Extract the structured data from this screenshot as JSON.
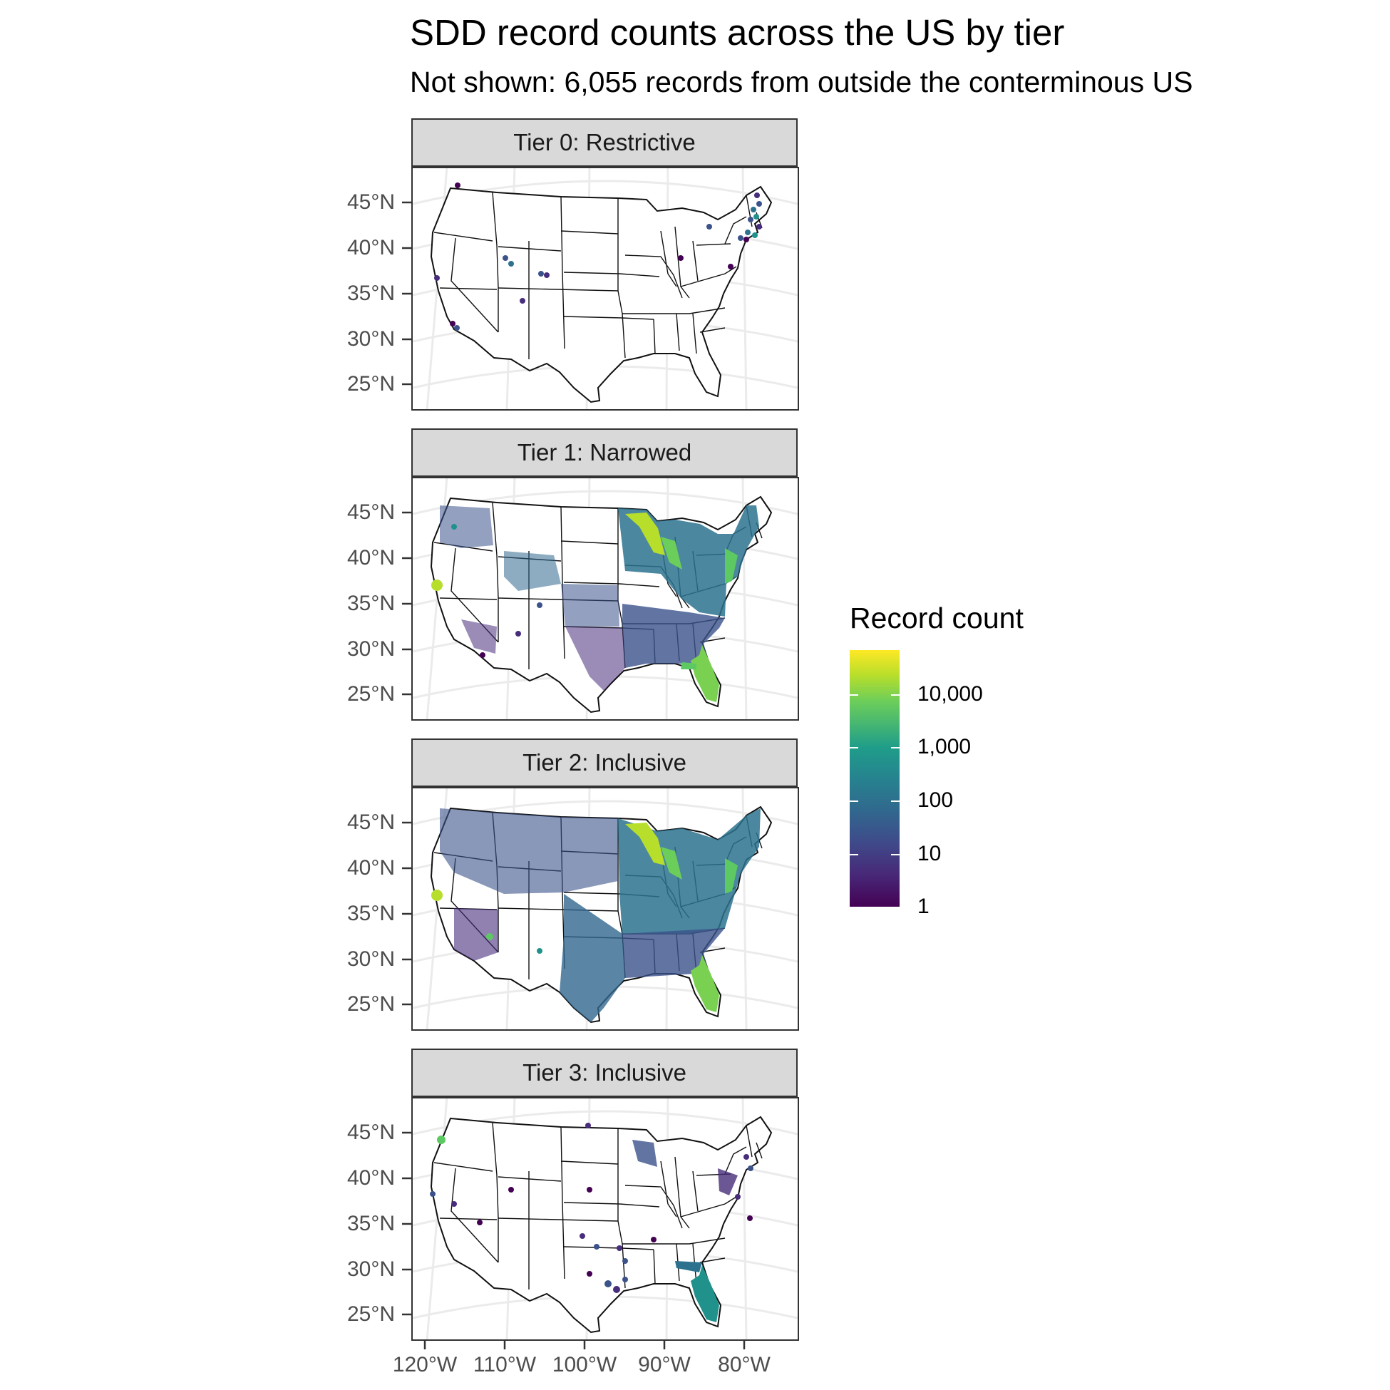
{
  "title": "SDD record counts across the US by tier",
  "subtitle": "Not shown: 6,055 records from outside the conterminous US",
  "panels": [
    {
      "label": "Tier 0: Restrictive"
    },
    {
      "label": "Tier 1: Narrowed"
    },
    {
      "label": "Tier 2: Inclusive"
    },
    {
      "label": "Tier 3: Inclusive"
    }
  ],
  "y_ticks": [
    "45°N",
    "40°N",
    "35°N",
    "30°N",
    "25°N"
  ],
  "x_ticks": [
    "120°W",
    "110°W",
    "100°W",
    "90°W",
    "80°W"
  ],
  "legend": {
    "title": "Record count",
    "labels": [
      "10,000",
      "1,000",
      "100",
      "10",
      "1"
    ],
    "colors": [
      "#440154",
      "#3b528b",
      "#21908c",
      "#5dc963",
      "#fde725"
    ]
  }
}
